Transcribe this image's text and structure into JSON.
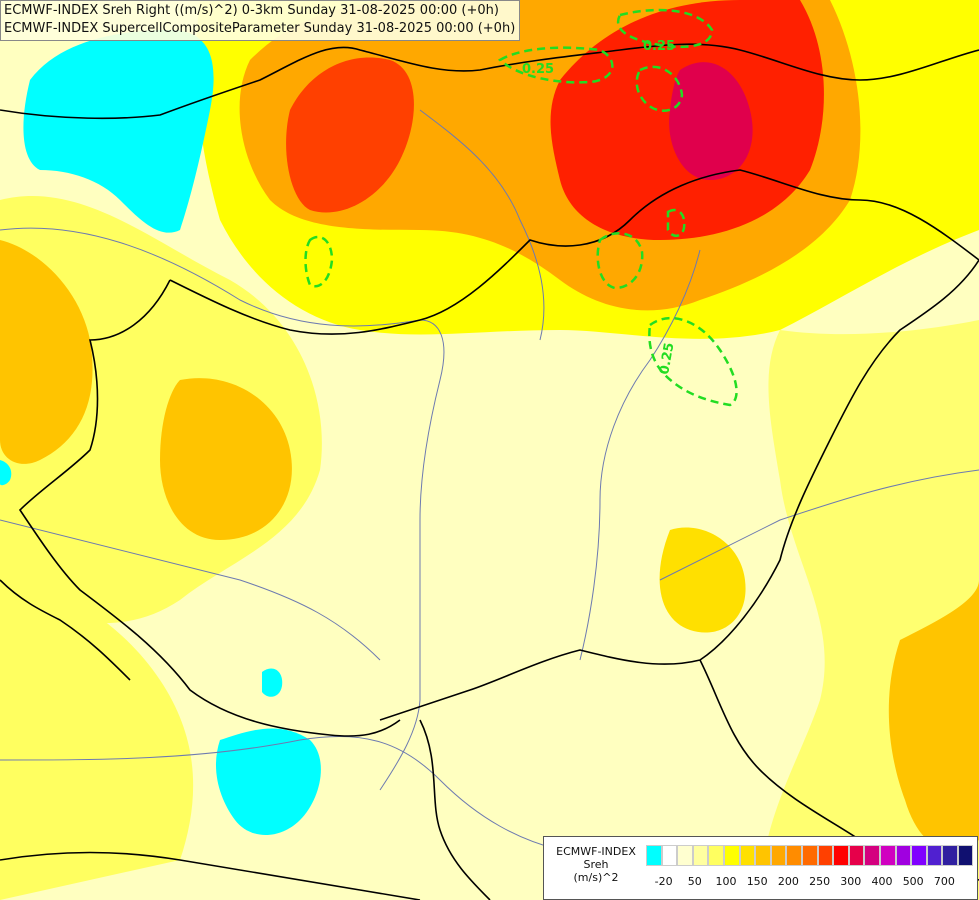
{
  "header": {
    "line1": "ECMWF-INDEX Sreh Right ((m/s)^2) 0-3km Sunday 31-08-2025 00:00 (+0h)",
    "line2": "ECMWF-INDEX SupercellCompositeParameter Sunday 31-08-2025 00:00 (+0h)"
  },
  "contour_labels": [
    {
      "text": "0.25"
    },
    {
      "text": "0.25"
    },
    {
      "text": "0.25"
    }
  ],
  "legend": {
    "line1": "ECMWF-INDEX",
    "line2": "Sreh",
    "line3": "(m/s)^2",
    "colors": [
      "#00ffff",
      "#ffffff",
      "#ffffd0",
      "#ffffa0",
      "#ffff60",
      "#ffff00",
      "#ffe000",
      "#ffc400",
      "#ffa800",
      "#ff8c00",
      "#ff6a00",
      "#ff4000",
      "#ff0000",
      "#e6004a",
      "#d4007f",
      "#d000c0",
      "#a000e0",
      "#8000ff",
      "#5020d0",
      "#3020a0",
      "#101070"
    ],
    "ticks": [
      "-20",
      "50",
      "100",
      "150",
      "200",
      "250",
      "300",
      "400",
      "500",
      "700"
    ]
  },
  "colors": {
    "cyan": "#00ffff",
    "pale_yellow": "#ffffc0",
    "yellow": "#ffff00",
    "orange": "#ffa800",
    "red": "#ff2000",
    "crimson": "#e0004c",
    "contour_green": "#22dd22",
    "river_blue": "#6d7ab0",
    "border_black": "#000000"
  }
}
